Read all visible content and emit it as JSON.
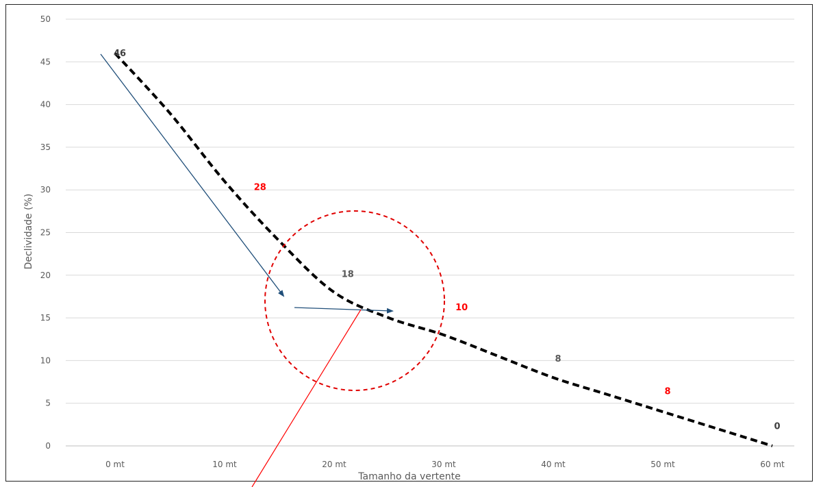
{
  "chart_data": {
    "type": "line",
    "title": "",
    "xlabel": "Tamanho da vertente",
    "ylabel": "Declividade (%)",
    "ylim": [
      0,
      50
    ],
    "yticks": [
      0,
      5,
      10,
      15,
      20,
      25,
      30,
      35,
      40,
      45,
      50
    ],
    "categories": [
      "0 mt",
      "10 mt",
      "20 mt",
      "30 mt",
      "40 mt",
      "50 mt",
      "60 mt"
    ],
    "grid": true,
    "line_style": "dashed",
    "line_color": "#000000",
    "points": [
      {
        "x": 0,
        "y": 46
      },
      {
        "x": 5,
        "y": 39
      },
      {
        "x": 10,
        "y": 31
      },
      {
        "x": 15,
        "y": 24
      },
      {
        "x": 20,
        "y": 18
      },
      {
        "x": 25,
        "y": 15
      },
      {
        "x": 30,
        "y": 13
      },
      {
        "x": 35,
        "y": 10.5
      },
      {
        "x": 40,
        "y": 8
      },
      {
        "x": 45,
        "y": 6
      },
      {
        "x": 50,
        "y": 4
      },
      {
        "x": 55,
        "y": 2
      },
      {
        "x": 60,
        "y": 0
      }
    ],
    "data_labels": [
      {
        "text": "46",
        "x": 0,
        "y": 46,
        "color": "#404040"
      },
      {
        "text": "28",
        "x": 12.8,
        "y": 30.3,
        "color": "#ff0000"
      },
      {
        "text": "18",
        "x": 20.8,
        "y": 20.1,
        "color": "#595959"
      },
      {
        "text": "10",
        "x": 31.2,
        "y": 16.2,
        "color": "#ff0000"
      },
      {
        "text": "8",
        "x": 40,
        "y": 10.2,
        "color": "#595959"
      },
      {
        "text": "8",
        "x": 50,
        "y": 6.4,
        "color": "#ff0000"
      },
      {
        "text": "0",
        "x": 60,
        "y": 2.3,
        "color": "#404040"
      }
    ],
    "colors": {
      "grid": "#d9d9d9",
      "arrow": "#1f4e79",
      "circle": "#e00000",
      "pointer": "#ff0000"
    }
  }
}
